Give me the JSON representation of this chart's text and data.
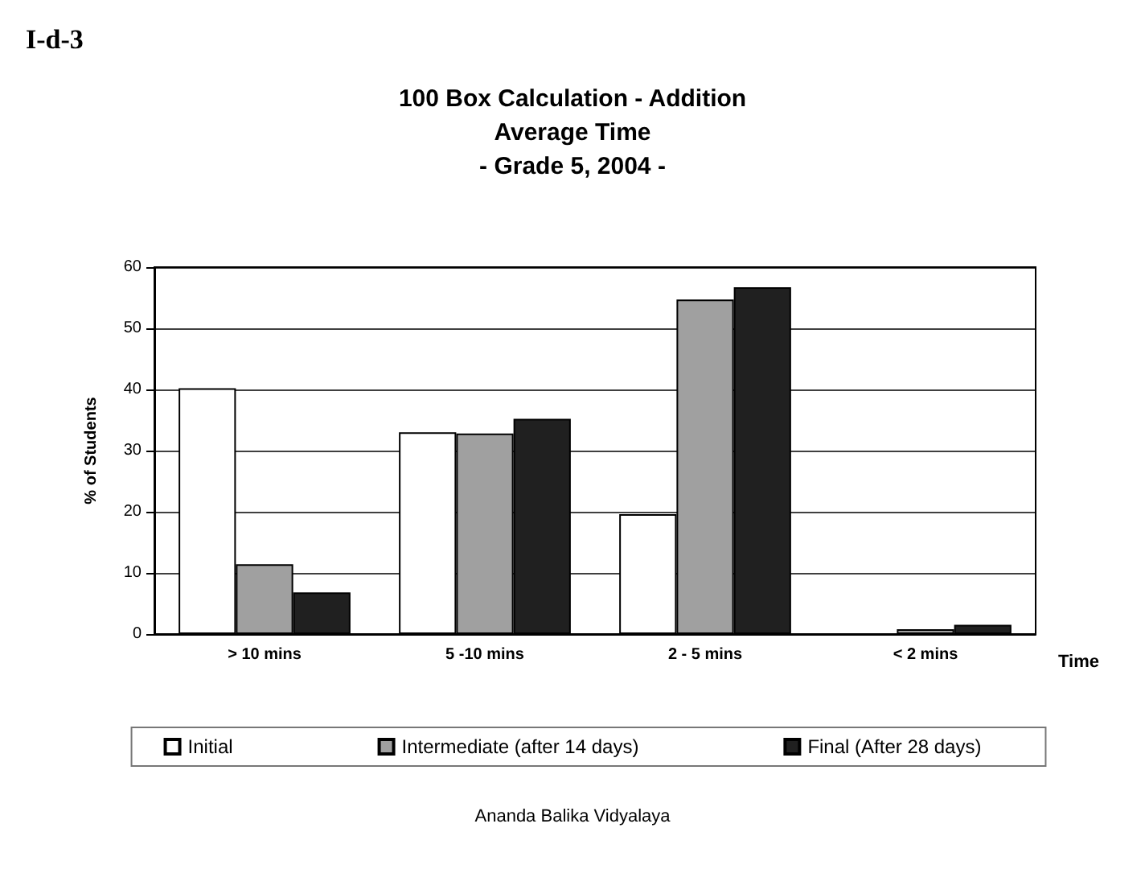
{
  "chart_data": {
    "type": "bar",
    "title": "100 Box Calculation - Addition\nAverage Time\n- Grade 5, 2004 -",
    "xlabel": "Time",
    "ylabel": "% of Students",
    "categories": [
      "> 10 mins",
      "5 -10 mins",
      "2 - 5 mins",
      "< 2 mins"
    ],
    "series": [
      {
        "name": "Initial",
        "color": "#ffffff",
        "values": [
          40.2,
          33,
          19.6,
          0
        ]
      },
      {
        "name": "Intermediate (after 14 days)",
        "color": "#a0a0a0",
        "values": [
          11.4,
          32.8,
          54.7,
          0.8
        ]
      },
      {
        "name": "Final (After 28 days)",
        "color": "#202020",
        "values": [
          6.8,
          35.2,
          56.7,
          1.5
        ]
      }
    ],
    "ylim": [
      0,
      60
    ],
    "yticks": [
      0,
      10,
      20,
      30,
      40,
      50,
      60
    ],
    "grid": "y",
    "legend": "bottom",
    "annotations": [
      "I-d-3",
      "Ananda Balika Vidyalaya"
    ]
  }
}
